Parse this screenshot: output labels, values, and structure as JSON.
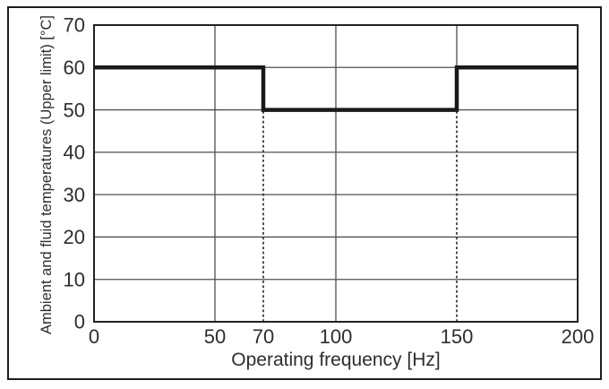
{
  "figure": {
    "kind": "technical-derating-chart",
    "background": "#ffffff"
  },
  "chart_data": {
    "type": "line",
    "subtype": "step",
    "title": "",
    "xlabel": "Operating frequency [Hz]",
    "ylabel": "Ambient and fluid temperatures (Upper limit) [°C]",
    "xlim": [
      0,
      200
    ],
    "ylim": [
      0,
      70
    ],
    "x_ticks": [
      0,
      50,
      70,
      100,
      150,
      200
    ],
    "y_ticks": [
      0,
      10,
      20,
      30,
      40,
      50,
      60,
      70
    ],
    "grid": true,
    "legend_position": "none",
    "series": [
      {
        "name": "upper-temperature-limit",
        "points": [
          [
            0,
            60
          ],
          [
            70,
            60
          ],
          [
            70,
            50
          ],
          [
            150,
            50
          ],
          [
            150,
            60
          ],
          [
            200,
            60
          ]
        ],
        "color": "#191919",
        "stroke_width": 4.5
      }
    ],
    "h_gridlines": [
      10,
      20,
      30,
      40,
      50,
      60
    ],
    "v_gridlines": [
      {
        "x": 50,
        "y_from": 0,
        "y_to": 70
      },
      {
        "x": 100,
        "y_from": 0,
        "y_to": 70
      },
      {
        "x": 150,
        "y_from": 60,
        "y_to": 70
      }
    ],
    "dashed_guides": [
      {
        "x": 70,
        "y_from": 0,
        "y_to": 50
      },
      {
        "x": 150,
        "y_from": 0,
        "y_to": 50
      }
    ],
    "colors": {
      "grid": "#4f4f4f",
      "axis_border": "#222222",
      "dashed_guide": "#3c3c3c",
      "tick_label": "#2d2d2d",
      "axis_title": "#2d2d2d",
      "frame": "#1e1e1e",
      "background": "#ffffff"
    }
  }
}
